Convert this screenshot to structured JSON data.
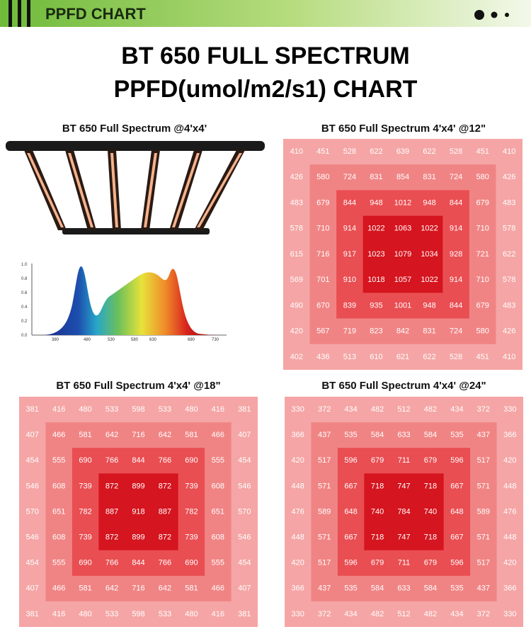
{
  "header": {
    "title": "PPFD CHART"
  },
  "title": [
    "BT 650 FULL SPECTRUM",
    "PPFD(umol/m2/s1) CHART"
  ],
  "product_panel": {
    "title": "BT 650 Full Spectrum @4'x4'",
    "spectrum": {
      "yticks": [
        "0.0",
        "0.2",
        "0.4",
        "0.6",
        "0.8",
        "1.0"
      ],
      "xticks": [
        380,
        480,
        530,
        580,
        630,
        680,
        730
      ]
    }
  },
  "grids": [
    {
      "title": "BT 650 Full Spectrum 4'x4' @12\"",
      "rows": [
        [
          410,
          451,
          528,
          622,
          639,
          622,
          528,
          451,
          410
        ],
        [
          426,
          580,
          724,
          831,
          854,
          831,
          724,
          580,
          426
        ],
        [
          483,
          679,
          844,
          948,
          1012,
          948,
          844,
          679,
          483
        ],
        [
          578,
          710,
          914,
          1022,
          1063,
          1022,
          914,
          710,
          578
        ],
        [
          615,
          716,
          917,
          1023,
          1079,
          1034,
          928,
          721,
          622
        ],
        [
          569,
          701,
          910,
          1018,
          1057,
          1022,
          914,
          710,
          578
        ],
        [
          490,
          670,
          839,
          935,
          1001,
          948,
          844,
          679,
          483
        ],
        [
          420,
          567,
          719,
          823,
          842,
          831,
          724,
          580,
          426
        ],
        [
          402,
          436,
          513,
          610,
          621,
          622,
          528,
          451,
          410
        ]
      ]
    },
    {
      "title": "BT 650 Full Spectrum 4'x4' @18\"",
      "rows": [
        [
          381,
          416,
          480,
          533,
          598,
          533,
          480,
          416,
          381
        ],
        [
          407,
          466,
          581,
          642,
          716,
          642,
          581,
          466,
          407
        ],
        [
          454,
          555,
          690,
          766,
          844,
          766,
          690,
          555,
          454
        ],
        [
          546,
          608,
          739,
          872,
          899,
          872,
          739,
          608,
          546
        ],
        [
          570,
          651,
          782,
          887,
          918,
          887,
          782,
          651,
          570
        ],
        [
          546,
          608,
          739,
          872,
          899,
          872,
          739,
          608,
          546
        ],
        [
          454,
          555,
          690,
          766,
          844,
          766,
          690,
          555,
          454
        ],
        [
          407,
          466,
          581,
          642,
          716,
          642,
          581,
          466,
          407
        ],
        [
          381,
          416,
          480,
          533,
          598,
          533,
          480,
          416,
          381
        ]
      ]
    },
    {
      "title": "BT 650 Full Spectrum 4'x4' @24\"",
      "rows": [
        [
          330,
          372,
          434,
          482,
          512,
          482,
          434,
          372,
          330
        ],
        [
          366,
          437,
          535,
          584,
          633,
          584,
          535,
          437,
          366
        ],
        [
          420,
          517,
          596,
          679,
          711,
          679,
          596,
          517,
          420
        ],
        [
          448,
          571,
          667,
          718,
          747,
          718,
          667,
          571,
          448
        ],
        [
          476,
          589,
          648,
          740,
          784,
          740,
          648,
          589,
          476
        ],
        [
          448,
          571,
          667,
          718,
          747,
          718,
          667,
          571,
          448
        ],
        [
          420,
          517,
          596,
          679,
          711,
          679,
          596,
          517,
          420
        ],
        [
          366,
          437,
          535,
          584,
          633,
          584,
          535,
          437,
          366
        ],
        [
          330,
          372,
          434,
          482,
          512,
          482,
          434,
          372,
          330
        ]
      ]
    }
  ]
}
